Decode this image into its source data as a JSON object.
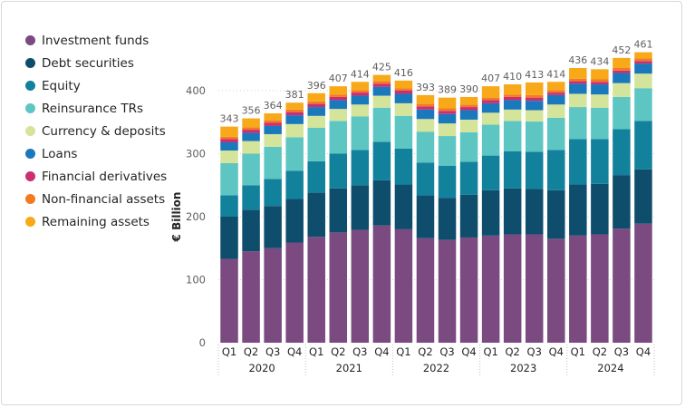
{
  "chart_data": {
    "type": "bar",
    "stacked": true,
    "ylabel": "€ Billion",
    "ylim": [
      0,
      460
    ],
    "yticks": [
      0,
      100,
      200,
      300,
      400
    ],
    "categories": [
      "Q1",
      "Q2",
      "Q3",
      "Q4",
      "Q1",
      "Q2",
      "Q3",
      "Q4",
      "Q1",
      "Q2",
      "Q3",
      "Q4",
      "Q1",
      "Q2",
      "Q3",
      "Q4",
      "Q1",
      "Q2",
      "Q3",
      "Q4"
    ],
    "years": [
      "2020",
      "2021",
      "2022",
      "2023",
      "2024"
    ],
    "totals": [
      343,
      356,
      364,
      381,
      396,
      407,
      414,
      425,
      416,
      393,
      389,
      390,
      407,
      410,
      413,
      414,
      436,
      434,
      452,
      461
    ],
    "legend_position": "left",
    "series": [
      {
        "name": "Investment funds",
        "color": "#7a4a80",
        "values": [
          133,
          145,
          150,
          159,
          168,
          175,
          179,
          186,
          180,
          166,
          163,
          167,
          170,
          172,
          172,
          165,
          170,
          172,
          181,
          189
        ]
      },
      {
        "name": "Debt securities",
        "color": "#0e4d6b",
        "values": [
          67,
          66,
          67,
          69,
          70,
          70,
          71,
          72,
          71,
          68,
          67,
          68,
          72,
          73,
          72,
          77,
          81,
          80,
          85,
          86
        ]
      },
      {
        "name": "Equity",
        "color": "#12819c",
        "values": [
          34,
          39,
          43,
          45,
          50,
          55,
          56,
          61,
          57,
          52,
          51,
          52,
          55,
          59,
          59,
          64,
          72,
          71,
          73,
          77
        ]
      },
      {
        "name": "Reinsurance TRs",
        "color": "#5dc6c3",
        "values": [
          51,
          50,
          51,
          53,
          53,
          52,
          53,
          54,
          52,
          49,
          47,
          47,
          49,
          48,
          48,
          51,
          51,
          50,
          51,
          52
        ]
      },
      {
        "name": "Currency & deposits",
        "color": "#d4e49a",
        "values": [
          20,
          20,
          20,
          21,
          19,
          19,
          19,
          19,
          20,
          20,
          20,
          20,
          19,
          18,
          18,
          21,
          21,
          21,
          22,
          23
        ]
      },
      {
        "name": "Loans",
        "color": "#1a78bd",
        "values": [
          13,
          13,
          13,
          14,
          14,
          14,
          14,
          14,
          15,
          15,
          15,
          15,
          15,
          15,
          15,
          15,
          16,
          16,
          16,
          16
        ]
      },
      {
        "name": "Financial derivatives",
        "color": "#cc2e72",
        "values": [
          5,
          5,
          5,
          5,
          5,
          5,
          5,
          5,
          5,
          5,
          5,
          5,
          5,
          5,
          5,
          4,
          4,
          4,
          4,
          4
        ]
      },
      {
        "name": "Non-financial assets",
        "color": "#f37a22",
        "values": [
          4,
          4,
          4,
          4,
          4,
          4,
          4,
          4,
          4,
          4,
          4,
          4,
          4,
          4,
          4,
          4,
          4,
          4,
          4,
          4
        ]
      },
      {
        "name": "Remaining assets",
        "color": "#f8a91a",
        "values": [
          16,
          14,
          11,
          11,
          13,
          13,
          13,
          10,
          12,
          14,
          17,
          12,
          18,
          16,
          20,
          13,
          17,
          16,
          16,
          10
        ]
      }
    ]
  }
}
